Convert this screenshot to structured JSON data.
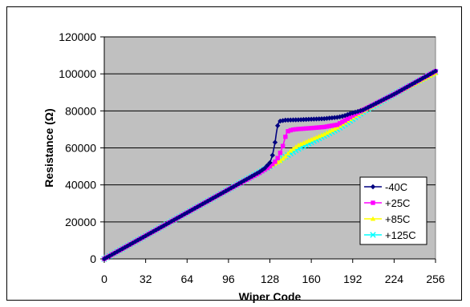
{
  "chart_data": {
    "type": "line",
    "title": "",
    "xlabel": "Wiper Code",
    "ylabel": "Resistance (Ω)",
    "xlim": [
      0,
      256
    ],
    "ylim": [
      0,
      120000
    ],
    "x_ticks": [
      0,
      32,
      64,
      96,
      128,
      160,
      192,
      224,
      256
    ],
    "y_ticks": [
      0,
      20000,
      40000,
      60000,
      80000,
      100000,
      120000
    ],
    "grid": "horizontal",
    "legend_position": "lower-right",
    "plot_background": "#c0c0c0",
    "series": [
      {
        "name": "-40C",
        "color": "#000080",
        "marker": "diamond",
        "x": [
          0,
          32,
          64,
          96,
          120,
          124,
          128,
          130,
          132,
          133,
          134,
          135,
          136,
          140,
          150,
          160,
          170,
          180,
          185,
          190,
          195,
          200,
          224,
          256
        ],
        "y": [
          0,
          12500,
          25000,
          37500,
          47000,
          49000,
          52000,
          56000,
          63000,
          68000,
          72000,
          74000,
          74500,
          75000,
          75200,
          75500,
          75800,
          76500,
          77200,
          78500,
          79500,
          80500,
          89000,
          101500
        ]
      },
      {
        "name": "+25C",
        "color": "#ff00ff",
        "marker": "square",
        "x": [
          0,
          32,
          64,
          96,
          120,
          128,
          132,
          135,
          138,
          140,
          141,
          142,
          145,
          150,
          160,
          170,
          180,
          186,
          192,
          200,
          224,
          256
        ],
        "y": [
          0,
          12500,
          25000,
          37500,
          46500,
          50000,
          52500,
          55500,
          61000,
          66000,
          68000,
          69000,
          69800,
          70200,
          70700,
          71300,
          72500,
          74800,
          77500,
          80500,
          89000,
          101500
        ]
      },
      {
        "name": "+85C",
        "color": "#ffff00",
        "marker": "triangle",
        "x": [
          0,
          32,
          64,
          96,
          128,
          136,
          140,
          144,
          150,
          160,
          170,
          180,
          192,
          200,
          224,
          256
        ],
        "y": [
          0,
          12500,
          25000,
          37500,
          50000,
          53000,
          55500,
          58500,
          61500,
          64500,
          67500,
          71000,
          76500,
          80000,
          89000,
          100500
        ]
      },
      {
        "name": "+125C",
        "color": "#00ffff",
        "marker": "x",
        "x": [
          0,
          32,
          64,
          96,
          128,
          136,
          144,
          150,
          160,
          170,
          180,
          192,
          200,
          224,
          256
        ],
        "y": [
          0,
          12500,
          25000,
          37500,
          50000,
          53500,
          57000,
          59500,
          63000,
          66500,
          70000,
          75500,
          79500,
          89000,
          101000
        ]
      }
    ]
  }
}
